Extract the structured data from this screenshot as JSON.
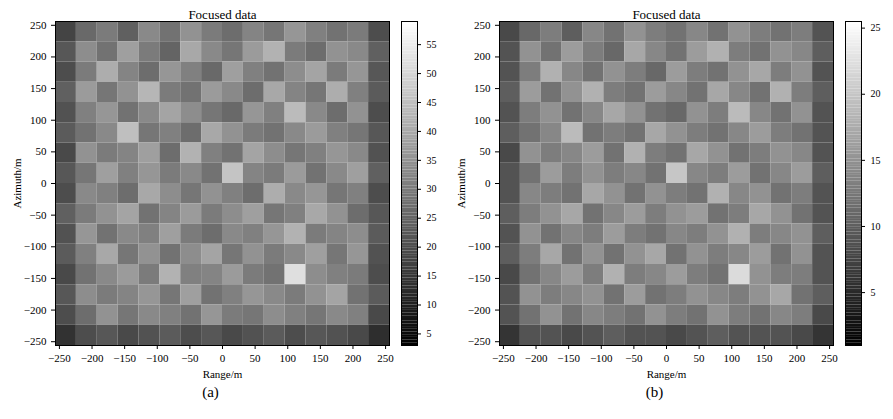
{
  "chart_data": [
    {
      "type": "heatmap",
      "title": "Focused data",
      "x_label": "Range/m",
      "y_label": "Azimuth/m",
      "caption": "(a)",
      "xlim": [
        -256,
        256
      ],
      "ylim": [
        -256,
        256
      ],
      "xticks": [
        -250,
        -200,
        -150,
        -100,
        -50,
        0,
        50,
        100,
        150,
        200,
        250
      ],
      "yticks": [
        -250,
        -200,
        -150,
        -100,
        -50,
        0,
        50,
        100,
        150,
        200,
        250
      ],
      "colorbar": {
        "lim": [
          3,
          59
        ],
        "ticks": [
          5,
          10,
          15,
          20,
          25,
          30,
          35,
          40,
          45,
          50,
          55
        ]
      },
      "cells": [
        [
          18,
          26,
          30,
          24,
          33,
          28,
          35,
          30,
          27,
          32,
          29,
          36,
          31,
          28,
          30,
          20
        ],
        [
          22,
          34,
          28,
          38,
          30,
          25,
          40,
          33,
          29,
          37,
          42,
          30,
          27,
          35,
          33,
          24
        ],
        [
          20,
          30,
          41,
          32,
          27,
          36,
          31,
          26,
          38,
          31,
          28,
          34,
          39,
          30,
          36,
          22
        ],
        [
          24,
          37,
          29,
          35,
          43,
          30,
          28,
          37,
          33,
          27,
          40,
          32,
          29,
          41,
          31,
          23
        ],
        [
          21,
          31,
          36,
          28,
          33,
          39,
          34,
          29,
          26,
          36,
          31,
          44,
          33,
          27,
          35,
          20
        ],
        [
          23,
          28,
          33,
          45,
          29,
          31,
          27,
          40,
          35,
          30,
          28,
          33,
          37,
          31,
          29,
          22
        ],
        [
          19,
          35,
          30,
          32,
          38,
          27,
          42,
          31,
          28,
          39,
          34,
          29,
          31,
          36,
          33,
          21
        ],
        [
          22,
          29,
          38,
          31,
          36,
          30,
          33,
          28,
          46,
          32,
          30,
          37,
          28,
          33,
          38,
          24
        ],
        [
          20,
          33,
          31,
          27,
          40,
          34,
          29,
          35,
          31,
          27,
          41,
          33,
          36,
          29,
          31,
          20
        ],
        [
          24,
          30,
          35,
          39,
          28,
          32,
          37,
          30,
          34,
          38,
          29,
          31,
          40,
          35,
          27,
          22
        ],
        [
          21,
          36,
          28,
          33,
          31,
          38,
          30,
          27,
          33,
          31,
          36,
          42,
          30,
          32,
          34,
          23
        ],
        [
          23,
          31,
          40,
          29,
          35,
          28,
          34,
          39,
          29,
          35,
          30,
          33,
          38,
          29,
          36,
          21
        ],
        [
          19,
          28,
          33,
          37,
          30,
          42,
          31,
          32,
          37,
          30,
          28,
          52,
          34,
          31,
          30,
          20
        ],
        [
          22,
          34,
          30,
          32,
          36,
          29,
          38,
          28,
          31,
          36,
          33,
          30,
          35,
          39,
          28,
          23
        ],
        [
          20,
          27,
          35,
          29,
          33,
          31,
          28,
          36,
          30,
          29,
          34,
          31,
          29,
          33,
          31,
          19
        ],
        [
          14,
          20,
          22,
          19,
          21,
          23,
          20,
          22,
          19,
          21,
          23,
          20,
          22,
          21,
          19,
          13
        ]
      ]
    },
    {
      "type": "heatmap",
      "title": "Focused data",
      "x_label": "Range/m",
      "y_label": "Azimuth/m",
      "caption": "(b)",
      "xlim": [
        -256,
        256
      ],
      "ylim": [
        -256,
        256
      ],
      "xticks": [
        -250,
        -200,
        -150,
        -100,
        -50,
        0,
        50,
        100,
        150,
        200,
        250
      ],
      "yticks": [
        -250,
        -200,
        -150,
        -100,
        -50,
        0,
        50,
        100,
        150,
        200,
        250
      ],
      "colorbar": {
        "lim": [
          1,
          25.5
        ],
        "ticks": [
          5,
          10,
          15,
          20,
          25
        ]
      },
      "cells": [
        [
          8,
          11,
          13,
          10,
          14,
          12,
          15,
          13,
          12,
          14,
          12,
          15,
          13,
          12,
          13,
          9
        ],
        [
          9,
          15,
          12,
          16,
          13,
          11,
          17,
          14,
          12,
          16,
          18,
          13,
          12,
          15,
          14,
          10
        ],
        [
          9,
          13,
          18,
          14,
          12,
          15,
          13,
          11,
          16,
          13,
          12,
          15,
          17,
          13,
          15,
          9
        ],
        [
          10,
          16,
          12,
          15,
          18,
          13,
          12,
          16,
          14,
          12,
          17,
          14,
          12,
          18,
          13,
          10
        ],
        [
          9,
          13,
          15,
          12,
          14,
          17,
          15,
          12,
          11,
          15,
          13,
          19,
          14,
          12,
          15,
          9
        ],
        [
          10,
          12,
          14,
          19,
          12,
          13,
          12,
          17,
          15,
          13,
          12,
          14,
          16,
          13,
          12,
          9
        ],
        [
          8,
          15,
          13,
          14,
          16,
          12,
          18,
          13,
          12,
          17,
          15,
          12,
          13,
          15,
          14,
          9
        ],
        [
          9,
          12,
          16,
          13,
          15,
          13,
          14,
          12,
          20,
          14,
          13,
          16,
          12,
          14,
          16,
          10
        ],
        [
          9,
          14,
          13,
          12,
          17,
          15,
          12,
          15,
          13,
          12,
          18,
          14,
          15,
          12,
          13,
          9
        ],
        [
          10,
          13,
          15,
          17,
          12,
          14,
          16,
          13,
          15,
          16,
          12,
          13,
          17,
          15,
          12,
          9
        ],
        [
          9,
          15,
          12,
          14,
          13,
          16,
          13,
          12,
          14,
          13,
          15,
          18,
          13,
          14,
          15,
          10
        ],
        [
          10,
          13,
          17,
          12,
          15,
          12,
          15,
          17,
          12,
          15,
          13,
          14,
          16,
          12,
          15,
          9
        ],
        [
          8,
          12,
          14,
          16,
          13,
          18,
          13,
          14,
          16,
          13,
          12,
          22,
          15,
          13,
          13,
          9
        ],
        [
          9,
          15,
          13,
          14,
          15,
          12,
          16,
          12,
          13,
          15,
          14,
          13,
          15,
          17,
          12,
          10
        ],
        [
          9,
          12,
          15,
          12,
          14,
          13,
          12,
          15,
          13,
          12,
          15,
          13,
          12,
          14,
          13,
          8
        ],
        [
          6,
          9,
          9,
          8,
          9,
          10,
          9,
          9,
          8,
          9,
          10,
          9,
          9,
          9,
          8,
          6
        ]
      ]
    }
  ]
}
